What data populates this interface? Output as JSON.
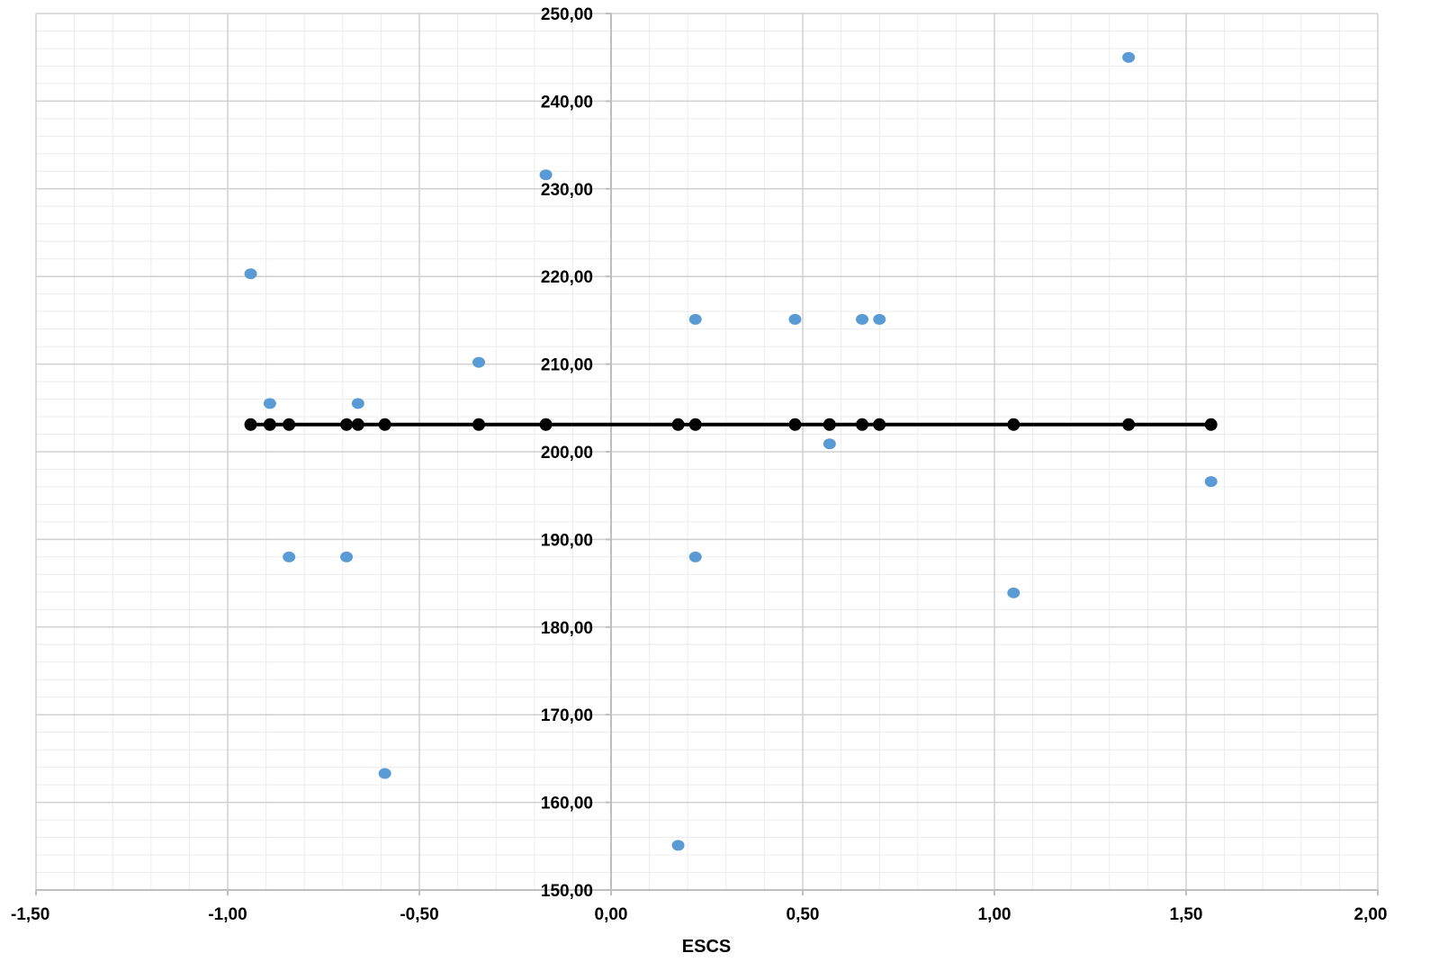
{
  "chart_data": {
    "type": "scatter",
    "title": "",
    "xlabel": "ESCS",
    "ylabel": "",
    "xlim": [
      -1.5,
      2.0
    ],
    "ylim": [
      150,
      250
    ],
    "x_major_step": 0.5,
    "y_major_step": 10,
    "x_minor_step": 0.1,
    "y_minor_step": 2,
    "grid": true,
    "legend": "none",
    "x_tick_labels": [
      "-1,50",
      "-1,00",
      "-0,50",
      "0,00",
      "0,50",
      "1,00",
      "1,50",
      "2,00"
    ],
    "y_tick_labels": [
      "150,00",
      "160,00",
      "170,00",
      "180,00",
      "190,00",
      "200,00",
      "210,00",
      "220,00",
      "230,00",
      "240,00",
      "250,00"
    ],
    "colors": {
      "observed": "#5b9bd5",
      "predicted": "#000000",
      "major_grid": "#d0d0d0",
      "minor_grid": "#ececec",
      "axis": "#bfbfbf"
    },
    "series": [
      {
        "kind": "points",
        "x": [
          -0.94,
          -0.89,
          -0.84,
          -0.69,
          -0.66,
          -0.59,
          -0.345,
          -0.17,
          0.175,
          0.22,
          0.22,
          0.48,
          0.57,
          0.655,
          0.7,
          1.05,
          1.35,
          1.565
        ],
        "y": [
          220.3,
          205.5,
          188.0,
          188.0,
          205.5,
          163.3,
          210.2,
          231.6,
          155.1,
          215.1,
          188.0,
          215.1,
          200.9,
          215.1,
          215.1,
          183.9,
          245.0,
          196.6
        ]
      },
      {
        "kind": "line-markers",
        "x": [
          -0.94,
          -0.89,
          -0.84,
          -0.69,
          -0.66,
          -0.59,
          -0.345,
          -0.17,
          0.175,
          0.22,
          0.48,
          0.57,
          0.655,
          0.7,
          1.05,
          1.35,
          1.565
        ],
        "y": [
          203.1,
          203.1,
          203.1,
          203.1,
          203.1,
          203.1,
          203.1,
          203.1,
          203.1,
          203.1,
          203.1,
          203.1,
          203.1,
          203.1,
          203.1,
          203.1,
          203.1
        ]
      }
    ]
  }
}
